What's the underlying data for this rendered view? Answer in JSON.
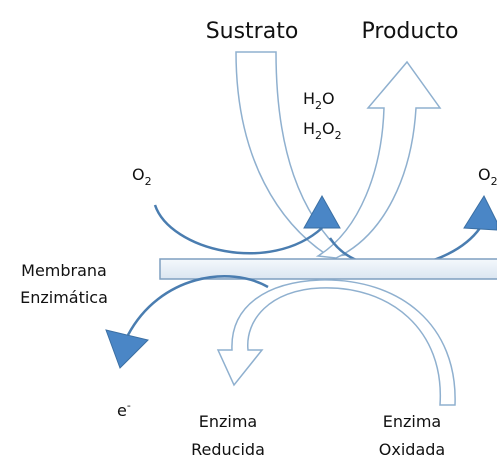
{
  "labels": {
    "substrate": "Sustrato",
    "product": "Producto",
    "water": [
      "H",
      "2",
      "O"
    ],
    "peroxide": [
      "H",
      "2",
      "O",
      "2"
    ],
    "oxygen_left": [
      "O",
      "2"
    ],
    "oxygen_right": [
      "O",
      "2"
    ],
    "membrane": [
      "Membrana",
      "Enzimática"
    ],
    "electron": [
      "e",
      "-"
    ],
    "enzyme_reduced": [
      "Enzima",
      "Reducida"
    ],
    "enzyme_oxidized": [
      "Enzima",
      "Oxidada"
    ]
  }
}
